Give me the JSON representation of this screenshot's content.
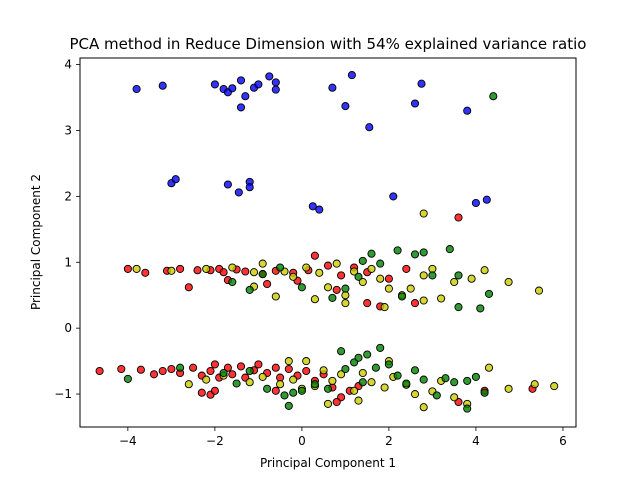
{
  "chart_data": {
    "type": "scatter",
    "title": "PCA method in Reduce Dimension with 54% explained variance ratio",
    "xlabel": "Principal Component 1",
    "ylabel": "Principal Component 2",
    "xlim": [
      -5.1,
      6.3
    ],
    "ylim": [
      -1.5,
      4.1
    ],
    "xticks": [
      -4,
      -2,
      0,
      2,
      4,
      6
    ],
    "yticks": [
      -1,
      0,
      1,
      2,
      3,
      4
    ],
    "grid": false,
    "legend": "none",
    "colors": {
      "blue": "#0000ff",
      "red": "#ff0000",
      "yellow": "#cccc00",
      "green": "#008000",
      "edge": "#000000"
    },
    "series": [
      {
        "color": "blue",
        "points": [
          [
            -3.8,
            3.63
          ],
          [
            -3.2,
            3.68
          ],
          [
            -2.0,
            3.7
          ],
          [
            -1.8,
            3.63
          ],
          [
            -1.7,
            3.58
          ],
          [
            -1.6,
            3.64
          ],
          [
            -1.4,
            3.76
          ],
          [
            -1.3,
            3.52
          ],
          [
            -1.1,
            3.65
          ],
          [
            -1.0,
            3.7
          ],
          [
            -0.75,
            3.82
          ],
          [
            -0.6,
            3.73
          ],
          [
            -0.6,
            3.62
          ],
          [
            0.7,
            3.65
          ],
          [
            1.15,
            3.84
          ],
          [
            2.75,
            3.71
          ],
          [
            1.0,
            3.37
          ],
          [
            2.6,
            3.41
          ],
          [
            3.8,
            3.3
          ],
          [
            1.55,
            3.05
          ],
          [
            -1.4,
            3.35
          ],
          [
            -3.0,
            2.2
          ],
          [
            -2.9,
            2.26
          ],
          [
            -1.7,
            2.18
          ],
          [
            -1.2,
            2.22
          ],
          [
            -1.2,
            2.14
          ],
          [
            -1.45,
            2.06
          ],
          [
            2.1,
            2.0
          ],
          [
            4.0,
            1.9
          ],
          [
            4.25,
            1.95
          ],
          [
            0.25,
            1.85
          ],
          [
            0.4,
            1.8
          ]
        ]
      },
      {
        "color": "red",
        "points": [
          [
            -4.0,
            0.9
          ],
          [
            -3.6,
            0.84
          ],
          [
            -3.1,
            0.87
          ],
          [
            -2.8,
            0.9
          ],
          [
            -2.6,
            0.62
          ],
          [
            -2.4,
            0.88
          ],
          [
            -2.1,
            0.88
          ],
          [
            -1.9,
            0.9
          ],
          [
            -1.8,
            0.85
          ],
          [
            -1.5,
            0.89
          ],
          [
            -1.3,
            0.86
          ],
          [
            -0.9,
            0.82
          ],
          [
            -0.6,
            0.87
          ],
          [
            -0.2,
            0.84
          ],
          [
            0.15,
            0.88
          ],
          [
            0.3,
            1.1
          ],
          [
            0.6,
            0.95
          ],
          [
            0.9,
            0.8
          ],
          [
            1.2,
            0.92
          ],
          [
            1.5,
            0.85
          ],
          [
            2.0,
            0.75
          ],
          [
            2.6,
            0.38
          ],
          [
            1.5,
            0.38
          ],
          [
            1.8,
            0.33
          ],
          [
            0.8,
            0.58
          ],
          [
            -0.1,
            0.72
          ],
          [
            -0.8,
            0.67
          ],
          [
            -1.7,
            0.73
          ],
          [
            -4.65,
            -0.65
          ],
          [
            -4.15,
            -0.62
          ],
          [
            -3.7,
            -0.63
          ],
          [
            -3.4,
            -0.7
          ],
          [
            -3.2,
            -0.65
          ],
          [
            -3.0,
            -0.62
          ],
          [
            -2.8,
            -0.68
          ],
          [
            -2.5,
            -0.6
          ],
          [
            -2.3,
            -0.72
          ],
          [
            -2.1,
            -0.65
          ],
          [
            -2.0,
            -0.55
          ],
          [
            -1.9,
            -0.75
          ],
          [
            -1.7,
            -0.6
          ],
          [
            -1.6,
            -0.7
          ],
          [
            -1.4,
            -0.58
          ],
          [
            -1.3,
            -0.75
          ],
          [
            -1.1,
            -0.64
          ],
          [
            -1.0,
            -0.55
          ],
          [
            -0.8,
            -0.68
          ],
          [
            -0.6,
            -0.6
          ],
          [
            -0.5,
            -0.75
          ],
          [
            -0.3,
            -0.62
          ],
          [
            -0.1,
            -0.72
          ],
          [
            0.1,
            -0.65
          ],
          [
            0.3,
            -0.8
          ],
          [
            0.5,
            -0.7
          ],
          [
            0.7,
            -0.9
          ],
          [
            0.9,
            -1.05
          ],
          [
            1.1,
            -0.95
          ],
          [
            1.3,
            -0.88
          ],
          [
            0.8,
            -1.12
          ],
          [
            -2.3,
            -0.98
          ],
          [
            -2.1,
            -1.01
          ],
          [
            -2.0,
            -0.95
          ],
          [
            -0.6,
            -0.95
          ],
          [
            3.6,
            -1.12
          ],
          [
            5.3,
            -0.92
          ],
          [
            3.6,
            1.68
          ],
          [
            2.4,
            0.9
          ],
          [
            4.2,
            -0.95
          ]
        ]
      },
      {
        "color": "yellow",
        "points": [
          [
            -3.8,
            0.9
          ],
          [
            -3.0,
            0.87
          ],
          [
            -2.2,
            0.9
          ],
          [
            -1.6,
            0.92
          ],
          [
            -1.1,
            0.85
          ],
          [
            -0.9,
            0.98
          ],
          [
            -0.4,
            0.86
          ],
          [
            -0.2,
            0.78
          ],
          [
            0.1,
            0.92
          ],
          [
            0.4,
            0.84
          ],
          [
            0.6,
            0.62
          ],
          [
            0.8,
            0.98
          ],
          [
            1.0,
            0.5
          ],
          [
            1.2,
            0.86
          ],
          [
            1.4,
            0.7
          ],
          [
            1.6,
            0.9
          ],
          [
            1.8,
            0.75
          ],
          [
            2.0,
            0.6
          ],
          [
            2.3,
            0.5
          ],
          [
            2.5,
            0.6
          ],
          [
            2.8,
            0.8
          ],
          [
            3.0,
            0.9
          ],
          [
            3.2,
            0.45
          ],
          [
            3.5,
            0.7
          ],
          [
            3.9,
            0.75
          ],
          [
            4.2,
            0.88
          ],
          [
            4.75,
            0.7
          ],
          [
            5.45,
            0.57
          ],
          [
            2.8,
            1.74
          ],
          [
            -0.6,
            0.48
          ],
          [
            0.3,
            0.44
          ],
          [
            1.0,
            0.38
          ],
          [
            -1.1,
            0.63
          ],
          [
            1.9,
            0.32
          ],
          [
            2.8,
            0.42
          ],
          [
            -2.6,
            -0.85
          ],
          [
            -2.2,
            -0.78
          ],
          [
            -1.8,
            -0.72
          ],
          [
            -1.2,
            -0.82
          ],
          [
            -0.9,
            -0.74
          ],
          [
            -0.5,
            -0.85
          ],
          [
            -0.2,
            -0.78
          ],
          [
            0.1,
            -0.5
          ],
          [
            0.3,
            -0.88
          ],
          [
            0.5,
            -0.64
          ],
          [
            0.7,
            -0.8
          ],
          [
            0.9,
            -0.7
          ],
          [
            1.2,
            -0.95
          ],
          [
            1.4,
            -0.68
          ],
          [
            1.6,
            -0.82
          ],
          [
            1.9,
            -0.9
          ],
          [
            2.1,
            -0.74
          ],
          [
            2.4,
            -0.86
          ],
          [
            2.6,
            -1.0
          ],
          [
            2.8,
            -1.2
          ],
          [
            3.0,
            -0.96
          ],
          [
            3.2,
            -0.8
          ],
          [
            3.5,
            -1.05
          ],
          [
            3.8,
            -1.15
          ],
          [
            4.3,
            -0.6
          ],
          [
            4.75,
            -0.92
          ],
          [
            5.35,
            -0.85
          ],
          [
            5.8,
            -0.88
          ],
          [
            2.0,
            -0.5
          ],
          [
            1.3,
            -1.1
          ],
          [
            0.6,
            -1.15
          ],
          [
            0.0,
            -0.92
          ],
          [
            -0.3,
            -0.5
          ]
        ]
      },
      {
        "color": "green",
        "points": [
          [
            -1.6,
            0.7
          ],
          [
            -1.2,
            0.58
          ],
          [
            -0.9,
            0.82
          ],
          [
            -0.5,
            0.92
          ],
          [
            0.0,
            0.62
          ],
          [
            0.7,
            0.46
          ],
          [
            1.0,
            0.6
          ],
          [
            1.3,
            0.78
          ],
          [
            1.6,
            1.13
          ],
          [
            1.8,
            0.98
          ],
          [
            2.2,
            1.18
          ],
          [
            2.6,
            1.12
          ],
          [
            2.8,
            1.15
          ],
          [
            3.0,
            0.8
          ],
          [
            3.4,
            1.2
          ],
          [
            3.6,
            0.8
          ],
          [
            3.6,
            0.32
          ],
          [
            4.1,
            0.3
          ],
          [
            4.3,
            0.52
          ],
          [
            4.4,
            3.52
          ],
          [
            1.4,
            1.02
          ],
          [
            2.3,
            0.48
          ],
          [
            -4.0,
            -0.77
          ],
          [
            -2.8,
            -0.6
          ],
          [
            -1.8,
            -0.68
          ],
          [
            -1.2,
            -0.65
          ],
          [
            -0.8,
            -0.92
          ],
          [
            -0.4,
            -1.02
          ],
          [
            -0.2,
            -0.98
          ],
          [
            0.0,
            -0.95
          ],
          [
            0.3,
            -0.85
          ],
          [
            0.6,
            -0.92
          ],
          [
            0.9,
            -0.35
          ],
          [
            1.0,
            -0.62
          ],
          [
            1.2,
            -0.52
          ],
          [
            1.3,
            -0.45
          ],
          [
            1.5,
            -0.4
          ],
          [
            1.7,
            -0.6
          ],
          [
            1.8,
            -0.3
          ],
          [
            2.0,
            -0.55
          ],
          [
            2.2,
            -0.72
          ],
          [
            2.4,
            -0.84
          ],
          [
            2.6,
            -0.64
          ],
          [
            2.8,
            -0.78
          ],
          [
            3.1,
            -1.02
          ],
          [
            3.3,
            -0.76
          ],
          [
            3.5,
            -0.82
          ],
          [
            3.8,
            -0.8
          ],
          [
            4.0,
            -0.74
          ],
          [
            4.2,
            -0.98
          ],
          [
            3.8,
            -1.22
          ],
          [
            1.4,
            -0.82
          ],
          [
            -0.3,
            -1.18
          ],
          [
            -1.5,
            -0.84
          ]
        ]
      }
    ]
  }
}
